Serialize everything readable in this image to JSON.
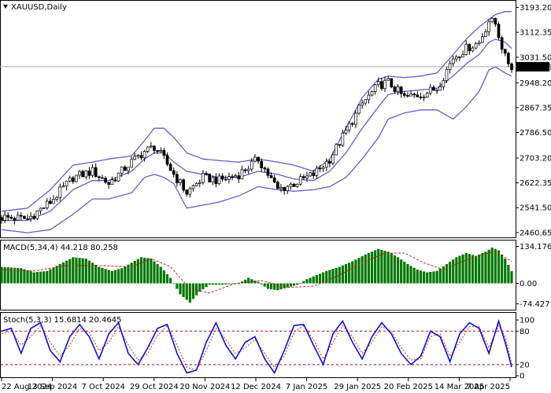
{
  "header": {
    "symbol_label": "XAUUSD,Daily",
    "menu_icon": "triangle-down-icon"
  },
  "price_axis": {
    "ticks": [
      "3193.20",
      "3112.35",
      "3031.50",
      "2948.20",
      "2867.35",
      "2786.50",
      "2703.20",
      "2622.35",
      "2541.50",
      "2460.65"
    ],
    "current_price": "3000.46"
  },
  "macd_panel": {
    "label": "MACD(5,34,4) 44.218 80.258",
    "ticks": [
      "134.176",
      "0.00",
      "-74.427"
    ]
  },
  "stoch_panel": {
    "label": "Stoch(5,3,3) 15.6814 20.4645",
    "ticks": [
      "100",
      "80",
      "20",
      "0"
    ]
  },
  "time_axis": {
    "ticks": [
      "22 Aug 2024",
      "13 Sep 2024",
      "7 Oct 2024",
      "29 Oct 2024",
      "20 Nov 2024",
      "12 Dec 2024",
      "7 Jan 2025",
      "29 Jan 2025",
      "20 Feb 2025",
      "14 Mar 2025",
      "7 Apr 2025"
    ]
  },
  "chart_data": [
    {
      "type": "candlestick",
      "title": "XAUUSD,Daily",
      "y_range": [
        2450,
        3210
      ],
      "current_price": 3000.46,
      "close_trend_x": [
        0,
        8,
        15,
        22,
        28,
        33,
        40,
        44,
        47,
        50,
        53,
        57,
        62,
        67,
        73,
        79,
        85,
        90,
        96,
        101,
        106,
        111,
        116,
        119,
        124,
        129,
        134,
        139,
        143,
        147,
        150,
        152,
        155,
        157
      ],
      "close_trend_y": [
        2510,
        2505,
        2560,
        2640,
        2660,
        2620,
        2690,
        2725,
        2740,
        2700,
        2650,
        2590,
        2640,
        2630,
        2650,
        2700,
        2600,
        2620,
        2650,
        2700,
        2790,
        2880,
        2940,
        2950,
        2900,
        2910,
        2930,
        3030,
        3060,
        3080,
        3150,
        3140,
        3030,
        3000
      ],
      "bollinger_upper_y": [
        2530,
        2540,
        2600,
        2680,
        2690,
        2700,
        2710,
        2760,
        2800,
        2800,
        2770,
        2720,
        2700,
        2695,
        2690,
        2700,
        2690,
        2680,
        2660,
        2700,
        2800,
        2900,
        2960,
        2970,
        2965,
        2970,
        2980,
        3040,
        3090,
        3130,
        3155,
        3170,
        3180,
        3180
      ],
      "bollinger_mid_y": [
        2500,
        2500,
        2530,
        2600,
        2630,
        2630,
        2660,
        2700,
        2720,
        2720,
        2690,
        2660,
        2650,
        2640,
        2640,
        2660,
        2650,
        2635,
        2630,
        2660,
        2720,
        2800,
        2870,
        2910,
        2920,
        2925,
        2930,
        2970,
        3010,
        3040,
        3080,
        3090,
        3080,
        3060
      ],
      "bollinger_lower_y": [
        2470,
        2460,
        2470,
        2520,
        2570,
        2570,
        2590,
        2640,
        2650,
        2640,
        2620,
        2540,
        2550,
        2560,
        2580,
        2610,
        2600,
        2595,
        2600,
        2610,
        2640,
        2700,
        2770,
        2830,
        2850,
        2860,
        2860,
        2830,
        2870,
        2920,
        2990,
        3000,
        2980,
        2970
      ]
    },
    {
      "type": "bar",
      "title": "MACD(5,34,4)",
      "y_range": [
        -90,
        150
      ],
      "histogram_x": [
        0,
        6,
        10,
        14,
        18,
        22,
        26,
        30,
        34,
        37,
        40,
        43,
        46,
        49,
        52,
        55,
        58,
        61,
        64,
        68,
        73,
        76,
        79,
        82,
        85,
        88,
        91,
        94,
        97,
        100,
        104,
        108,
        112,
        116,
        119,
        122,
        125,
        128,
        131,
        134,
        137,
        140,
        143,
        146,
        149,
        151,
        153,
        155,
        157
      ],
      "histogram_y": [
        60,
        55,
        40,
        45,
        70,
        95,
        90,
        60,
        45,
        55,
        75,
        95,
        90,
        60,
        20,
        -40,
        -70,
        -30,
        -5,
        -5,
        0,
        20,
        5,
        -20,
        -25,
        -15,
        -5,
        15,
        30,
        45,
        60,
        80,
        105,
        125,
        115,
        95,
        70,
        50,
        40,
        45,
        70,
        95,
        110,
        100,
        115,
        130,
        120,
        90,
        44.218
      ],
      "signal_x": [
        0,
        10,
        20,
        30,
        40,
        46,
        52,
        58,
        64,
        72,
        80,
        88,
        96,
        104,
        112,
        118,
        124,
        130,
        136,
        142,
        148,
        152,
        157
      ],
      "signal_y": [
        50,
        45,
        65,
        65,
        60,
        90,
        60,
        -20,
        -35,
        0,
        10,
        -15,
        -10,
        30,
        80,
        110,
        110,
        75,
        50,
        80,
        105,
        115,
        80.258
      ]
    },
    {
      "type": "line",
      "title": "Stoch(5,3,3)",
      "y_range": [
        0,
        110
      ],
      "levels": [
        80,
        20
      ],
      "x": [
        0,
        3,
        6,
        9,
        12,
        15,
        18,
        21,
        24,
        27,
        30,
        33,
        36,
        39,
        42,
        45,
        48,
        51,
        54,
        57,
        60,
        63,
        66,
        69,
        72,
        75,
        78,
        81,
        84,
        87,
        90,
        93,
        96,
        99,
        102,
        105,
        108,
        111,
        114,
        117,
        120,
        123,
        126,
        129,
        132,
        135,
        138,
        141,
        144,
        147,
        150,
        153,
        155,
        157
      ],
      "main_y": [
        80,
        85,
        40,
        85,
        95,
        45,
        25,
        70,
        92,
        70,
        30,
        75,
        95,
        40,
        20,
        50,
        85,
        92,
        40,
        5,
        10,
        60,
        95,
        55,
        30,
        60,
        70,
        30,
        5,
        45,
        90,
        92,
        55,
        20,
        75,
        98,
        60,
        30,
        70,
        95,
        75,
        40,
        20,
        35,
        80,
        70,
        25,
        75,
        95,
        85,
        40,
        98,
        60,
        15.6814
      ],
      "signal_y": [
        75,
        80,
        55,
        70,
        90,
        60,
        35,
        55,
        85,
        78,
        45,
        60,
        88,
        55,
        28,
        40,
        72,
        90,
        55,
        15,
        10,
        45,
        85,
        65,
        40,
        50,
        65,
        40,
        15,
        35,
        78,
        90,
        65,
        30,
        60,
        90,
        70,
        40,
        60,
        88,
        80,
        50,
        28,
        30,
        70,
        75,
        35,
        60,
        88,
        88,
        50,
        90,
        70,
        20.4645
      ]
    }
  ],
  "colors": {
    "bollinger": "#6a5acd",
    "macd_hist": "#007700",
    "macd_signal": "#d02020",
    "stoch_main": "#1010d0",
    "stoch_signal": "#d02020",
    "candle_bull_fill": "#ffffff",
    "candle_bear_fill": "#000000"
  }
}
